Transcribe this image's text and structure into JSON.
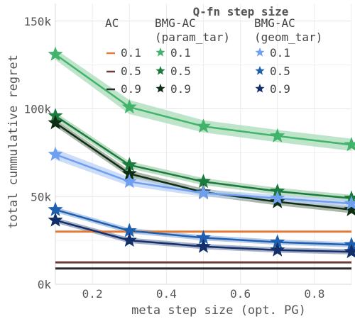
{
  "chart_data": {
    "type": "line",
    "xlabel": "meta step size (opt. PG)",
    "ylabel": "total cummulative regret",
    "xlim": [
      0.1,
      0.9
    ],
    "ylim": [
      0,
      160000
    ],
    "x_ticks": [
      0.2,
      0.4,
      0.6,
      0.8
    ],
    "x_tick_labels": [
      "0.2",
      "0.4",
      "0.6",
      "0.8"
    ],
    "y_ticks": [
      0,
      50000,
      100000,
      150000
    ],
    "y_tick_labels": [
      "0k",
      "50k",
      "100k",
      "150k"
    ],
    "grid": true,
    "legend": {
      "placement": "top",
      "title": "Q-fn step size",
      "columns": [
        {
          "header": [
            "AC"
          ],
          "entries": [
            "0.1",
            "0.5",
            "0.9"
          ]
        },
        {
          "header": [
            "BMG-AC",
            "(param_tar)"
          ],
          "entries": [
            "0.1",
            "0.5",
            "0.9"
          ]
        },
        {
          "header": [
            "BMG-AC",
            "(geom_tar)"
          ],
          "entries": [
            "0.1",
            "0.5",
            "0.9"
          ]
        }
      ]
    },
    "x": [
      0.1,
      0.3,
      0.5,
      0.7,
      0.9
    ],
    "series": [
      {
        "group": "AC",
        "name": "0.1",
        "color": "#e07b39",
        "kind": "hline",
        "value": 30000
      },
      {
        "group": "AC",
        "name": "0.5",
        "color": "#6b3d36",
        "kind": "hline",
        "value": 12500
      },
      {
        "group": "AC",
        "name": "0.9",
        "color": "#2a2a2a",
        "kind": "hline",
        "value": 9000
      },
      {
        "group": "BMG-AC (param_tar)",
        "name": "0.1",
        "color": "#41b36a",
        "band": "#a8dcb8",
        "values": [
          131000,
          101000,
          90000,
          84500,
          79500
        ],
        "err": [
          3000,
          4000,
          3500,
          3500,
          3500
        ]
      },
      {
        "group": "BMG-AC (param_tar)",
        "name": "0.5",
        "color": "#1b7a3e",
        "band": "#a8d4b2",
        "values": [
          96000,
          68000,
          58500,
          53000,
          49000
        ],
        "err": [
          2000,
          2000,
          2000,
          2000,
          2000
        ]
      },
      {
        "group": "BMG-AC (param_tar)",
        "name": "0.9",
        "color": "#0d2e12",
        "band": "#8f9f8f",
        "values": [
          92000,
          63000,
          52500,
          47000,
          42500
        ],
        "err": [
          2000,
          2000,
          2000,
          2000,
          2000
        ]
      },
      {
        "group": "BMG-AC (geom_tar)",
        "name": "0.1",
        "color": "#6f9fef",
        "band": "#bcd1f7",
        "values": [
          74000,
          58500,
          52000,
          49000,
          46000
        ],
        "err": [
          3000,
          2500,
          2000,
          2000,
          2000
        ]
      },
      {
        "group": "BMG-AC (geom_tar)",
        "name": "0.5",
        "color": "#1f5fb0",
        "band": "#9fbbe0",
        "values": [
          42500,
          30500,
          26500,
          24000,
          22500
        ],
        "err": [
          1500,
          1500,
          1500,
          1500,
          1500
        ]
      },
      {
        "group": "BMG-AC (geom_tar)",
        "name": "0.9",
        "color": "#132f6b",
        "band": "#8d98b5",
        "values": [
          36500,
          25000,
          21500,
          19500,
          18500
        ],
        "err": [
          1500,
          1500,
          1500,
          1500,
          1500
        ]
      }
    ]
  }
}
